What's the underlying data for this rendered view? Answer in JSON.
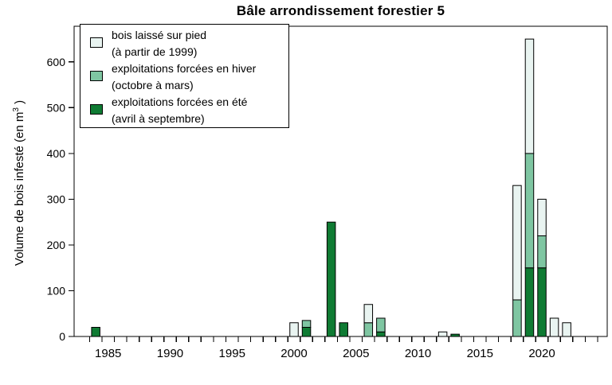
{
  "title": "Bâle arrondissement forestier 5",
  "y_axis_label": {
    "main": "Volume de bois infesté (en m",
    "sup": "3",
    "close": " )"
  },
  "colors": {
    "laisse": "#E9F4F1",
    "hiver": "#7FC6A2",
    "ete": "#0F7B33",
    "axis": "#000000"
  },
  "legend": {
    "items": [
      {
        "key": "laisse",
        "line1": "bois laissé sur pied",
        "line2": "(à partir de 1999)",
        "color": "#E9F4F1"
      },
      {
        "key": "hiver",
        "line1": "exploitations forcées en hiver",
        "line2": "(octobre à mars)",
        "color": "#7FC6A2"
      },
      {
        "key": "ete",
        "line1": "exploitations forcées en été",
        "line2": "(avril à septembre)",
        "color": "#0F7B33"
      }
    ]
  },
  "chart_data": {
    "type": "bar",
    "stacked": true,
    "title": "Bâle arrondissement forestier 5",
    "xlabel": "",
    "ylabel": "Volume de bois infesté (en m3)",
    "ylim": [
      0,
      678
    ],
    "yticks": [
      0,
      100,
      200,
      300,
      400,
      500,
      600
    ],
    "x_range_years": [
      1983.5,
      2024.5
    ],
    "x_tick_step_years": 1,
    "x_labeled_years": [
      1985,
      1990,
      1995,
      2000,
      2005,
      2010,
      2015,
      2020
    ],
    "grid": false,
    "legend_position": "top-left",
    "series_order_bottom_to_top": [
      "ete",
      "hiver",
      "laisse"
    ],
    "series": [
      {
        "key": "laisse",
        "name": "bois laissé sur pied (à partir de 1999)",
        "color": "#E9F4F1"
      },
      {
        "key": "hiver",
        "name": "exploitations forcées en hiver (octobre à mars)",
        "color": "#7FC6A2"
      },
      {
        "key": "ete",
        "name": "exploitations forcées en été (avril à septembre)",
        "color": "#0F7B33"
      }
    ],
    "bars": [
      {
        "year": 1984,
        "ete": 20,
        "hiver": 0,
        "laisse": 0
      },
      {
        "year": 2000,
        "ete": 0,
        "hiver": 0,
        "laisse": 30
      },
      {
        "year": 2001,
        "ete": 20,
        "hiver": 15,
        "laisse": 0
      },
      {
        "year": 2003,
        "ete": 250,
        "hiver": 0,
        "laisse": 0
      },
      {
        "year": 2004,
        "ete": 30,
        "hiver": 0,
        "laisse": 0
      },
      {
        "year": 2006,
        "ete": 0,
        "hiver": 30,
        "laisse": 40
      },
      {
        "year": 2007,
        "ete": 10,
        "hiver": 30,
        "laisse": 0
      },
      {
        "year": 2012,
        "ete": 0,
        "hiver": 0,
        "laisse": 10
      },
      {
        "year": 2013,
        "ete": 5,
        "hiver": 0,
        "laisse": 0
      },
      {
        "year": 2018,
        "ete": 0,
        "hiver": 80,
        "laisse": 250
      },
      {
        "year": 2019,
        "ete": 150,
        "hiver": 250,
        "laisse": 250
      },
      {
        "year": 2020,
        "ete": 150,
        "hiver": 70,
        "laisse": 80
      },
      {
        "year": 2021,
        "ete": 0,
        "hiver": 0,
        "laisse": 40
      },
      {
        "year": 2022,
        "ete": 0,
        "hiver": 0,
        "laisse": 30
      }
    ]
  }
}
